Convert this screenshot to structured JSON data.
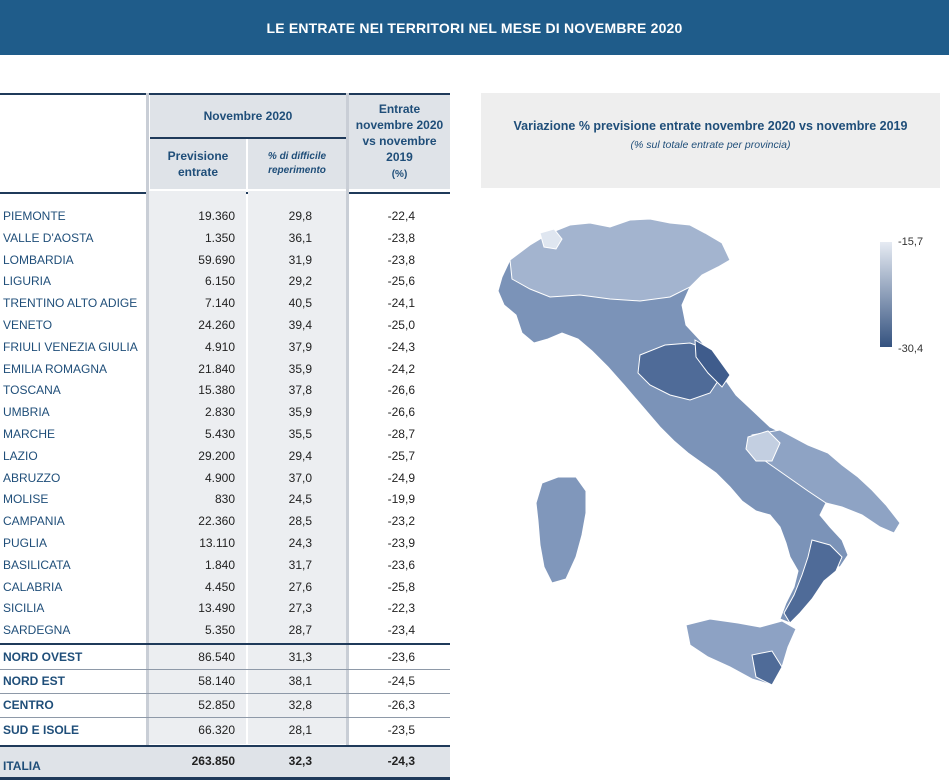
{
  "title": "LE ENTRATE NEI TERRITORI NEL MESE DI NOVEMBRE 2020",
  "table": {
    "header_group": "Novembre 2020",
    "col_previsione": "Previsione entrate",
    "col_difficile": "% di difficile reperimento",
    "col_entrate": "Entrate novembre 2020 vs novembre 2019",
    "col_entrate_unit": "(%)",
    "regions": [
      {
        "name": "PIEMONTE",
        "prev": "19.360",
        "diff": "29,8",
        "var": "-22,4"
      },
      {
        "name": "VALLE D'AOSTA",
        "prev": "1.350",
        "diff": "36,1",
        "var": "-23,8"
      },
      {
        "name": "LOMBARDIA",
        "prev": "59.690",
        "diff": "31,9",
        "var": "-23,8"
      },
      {
        "name": "LIGURIA",
        "prev": "6.150",
        "diff": "29,2",
        "var": "-25,6"
      },
      {
        "name": "TRENTINO ALTO ADIGE",
        "prev": "7.140",
        "diff": "40,5",
        "var": "-24,1"
      },
      {
        "name": "VENETO",
        "prev": "24.260",
        "diff": "39,4",
        "var": "-25,0"
      },
      {
        "name": "FRIULI VENEZIA GIULIA",
        "prev": "4.910",
        "diff": "37,9",
        "var": "-24,3"
      },
      {
        "name": "EMILIA ROMAGNA",
        "prev": "21.840",
        "diff": "35,9",
        "var": "-24,2"
      },
      {
        "name": "TOSCANA",
        "prev": "15.380",
        "diff": "37,8",
        "var": "-26,6"
      },
      {
        "name": "UMBRIA",
        "prev": "2.830",
        "diff": "35,9",
        "var": "-26,6"
      },
      {
        "name": "MARCHE",
        "prev": "5.430",
        "diff": "35,5",
        "var": "-28,7"
      },
      {
        "name": "LAZIO",
        "prev": "29.200",
        "diff": "29,4",
        "var": "-25,7"
      },
      {
        "name": "ABRUZZO",
        "prev": "4.900",
        "diff": "37,0",
        "var": "-24,9"
      },
      {
        "name": "MOLISE",
        "prev": "830",
        "diff": "24,5",
        "var": "-19,9"
      },
      {
        "name": "CAMPANIA",
        "prev": "22.360",
        "diff": "28,5",
        "var": "-23,2"
      },
      {
        "name": "PUGLIA",
        "prev": "13.110",
        "diff": "24,3",
        "var": "-23,9"
      },
      {
        "name": "BASILICATA",
        "prev": "1.840",
        "diff": "31,7",
        "var": "-23,6"
      },
      {
        "name": "CALABRIA",
        "prev": "4.450",
        "diff": "27,6",
        "var": "-25,8"
      },
      {
        "name": "SICILIA",
        "prev": "13.490",
        "diff": "27,3",
        "var": "-22,3"
      },
      {
        "name": "SARDEGNA",
        "prev": "5.350",
        "diff": "28,7",
        "var": "-23,4"
      }
    ],
    "areas": [
      {
        "name": "NORD OVEST",
        "prev": "86.540",
        "diff": "31,3",
        "var": "-23,6"
      },
      {
        "name": "NORD EST",
        "prev": "58.140",
        "diff": "38,1",
        "var": "-24,5"
      },
      {
        "name": "CENTRO",
        "prev": "52.850",
        "diff": "32,8",
        "var": "-26,3"
      },
      {
        "name": "SUD E ISOLE",
        "prev": "66.320",
        "diff": "28,1",
        "var": "-23,5"
      }
    ],
    "total": {
      "name": "ITALIA",
      "prev": "263.850",
      "diff": "32,3",
      "var": "-24,3"
    }
  },
  "map": {
    "title": "Variazione % previsione entrate  novembre 2020 vs novembre 2019",
    "subtitle": "(% sul totale entrate per provincia)",
    "legend_max": "-15,7",
    "legend_min": "-30,4",
    "color_light": "#e6ebf3",
    "color_dark": "#34527f"
  }
}
